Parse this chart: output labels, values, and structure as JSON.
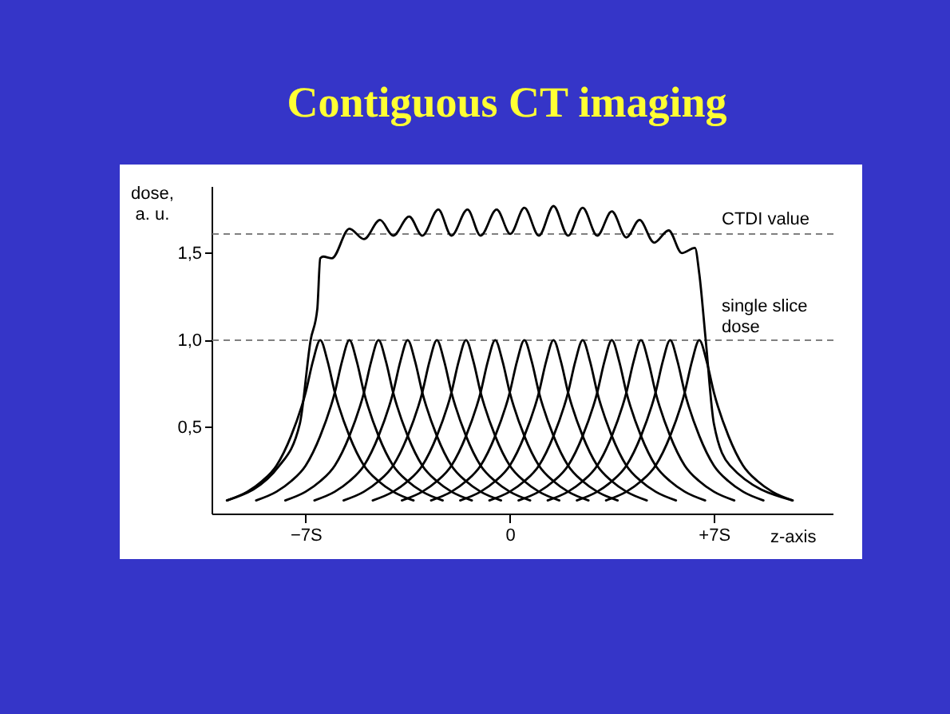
{
  "chart_data": {
    "type": "line",
    "title": "Contiguous CT imaging",
    "xlabel": "z-axis",
    "ylabel": "dose, a. u.",
    "xlim": [
      -10.2,
      11.1
    ],
    "ylim": [
      0,
      1.88
    ],
    "xticks": [
      {
        "value": -7,
        "label": "−7S"
      },
      0,
      {
        "value": 7,
        "label": "+7S"
      }
    ],
    "yticks": [
      {
        "value": 0.5,
        "label": "0,5"
      },
      {
        "value": 1,
        "label": "1,0"
      },
      {
        "value": 1.5,
        "label": "1,5"
      }
    ],
    "grid": false,
    "legend": false,
    "marker": "none",
    "line_style": "solid",
    "ref_lines": [
      {
        "axis": "y",
        "value": 1.61,
        "label": "CTDI value",
        "color": "#808080",
        "line_style": "dashed"
      },
      {
        "axis": "y",
        "value": 1.0,
        "label": "single slice dose",
        "color": "#808080",
        "line_style": "dashed"
      }
    ],
    "series": [
      {
        "color": "#000000",
        "x": [
          -9.7,
          -7.9,
          -7.2,
          -6.83,
          -6.6,
          -6.5,
          -6.4,
          -6.1,
          -5.5,
          -5.0,
          -4.45,
          -4.0,
          -3.45,
          -3.0,
          -2.45,
          -2.0,
          -1.45,
          -1.0,
          -0.45,
          0.02,
          0.5,
          1.0,
          1.5,
          2.0,
          2.5,
          3.0,
          3.5,
          4.0,
          4.45,
          4.95,
          5.45,
          5.9,
          6.35,
          6.5,
          6.72,
          7.0,
          7.55,
          9.7
        ],
        "values": [
          0.08,
          0.28,
          0.52,
          1.0,
          1.18,
          1.47,
          1.48,
          1.47,
          1.64,
          1.58,
          1.69,
          1.6,
          1.71,
          1.6,
          1.75,
          1.6,
          1.75,
          1.6,
          1.75,
          1.61,
          1.76,
          1.6,
          1.77,
          1.6,
          1.76,
          1.6,
          1.74,
          1.59,
          1.69,
          1.56,
          1.63,
          1.5,
          1.53,
          1.38,
          1.0,
          0.52,
          0.28,
          0.08
        ]
      },
      {
        "color": "#000000",
        "x": [
          -9.7,
          -9,
          -8.5,
          -8,
          -7.5,
          -7,
          -6.75,
          -6.5,
          -6.25,
          -6,
          -5.5,
          -5,
          -4.5,
          -4,
          -3.3
        ],
        "values": [
          0.08,
          0.13,
          0.19,
          0.28,
          0.45,
          0.7,
          0.88,
          1,
          0.88,
          0.7,
          0.45,
          0.28,
          0.19,
          0.13,
          0.08
        ]
      },
      {
        "color": "#000000",
        "x": [
          -8.7,
          -8,
          -7.5,
          -7,
          -6.5,
          -6,
          -5.75,
          -5.5,
          -5.25,
          -5,
          -4.5,
          -4,
          -3.5,
          -3,
          -2.3
        ],
        "values": [
          0.08,
          0.13,
          0.19,
          0.28,
          0.45,
          0.7,
          0.88,
          1,
          0.88,
          0.7,
          0.45,
          0.28,
          0.19,
          0.13,
          0.08
        ]
      },
      {
        "color": "#000000",
        "x": [
          -7.7,
          -7,
          -6.5,
          -6,
          -5.5,
          -5,
          -4.75,
          -4.5,
          -4.25,
          -4,
          -3.5,
          -3,
          -2.5,
          -2,
          -1.3
        ],
        "values": [
          0.08,
          0.13,
          0.19,
          0.28,
          0.45,
          0.7,
          0.88,
          1,
          0.88,
          0.7,
          0.45,
          0.28,
          0.19,
          0.13,
          0.08
        ]
      },
      {
        "color": "#000000",
        "x": [
          -6.7,
          -6,
          -5.5,
          -5,
          -4.5,
          -4,
          -3.75,
          -3.5,
          -3.25,
          -3,
          -2.5,
          -2,
          -1.5,
          -1,
          -0.3
        ],
        "values": [
          0.08,
          0.13,
          0.19,
          0.28,
          0.45,
          0.7,
          0.88,
          1,
          0.88,
          0.7,
          0.45,
          0.28,
          0.19,
          0.13,
          0.08
        ]
      },
      {
        "color": "#000000",
        "x": [
          -5.7,
          -5,
          -4.5,
          -4,
          -3.5,
          -3,
          -2.75,
          -2.5,
          -2.25,
          -2,
          -1.5,
          -1,
          -0.5,
          0,
          0.7
        ],
        "values": [
          0.08,
          0.13,
          0.19,
          0.28,
          0.45,
          0.7,
          0.88,
          1,
          0.88,
          0.7,
          0.45,
          0.28,
          0.19,
          0.13,
          0.08
        ]
      },
      {
        "color": "#000000",
        "x": [
          -4.7,
          -4,
          -3.5,
          -3,
          -2.5,
          -2,
          -1.75,
          -1.5,
          -1.25,
          -1,
          -0.5,
          0,
          0.5,
          1,
          1.7
        ],
        "values": [
          0.08,
          0.13,
          0.19,
          0.28,
          0.45,
          0.7,
          0.88,
          1,
          0.88,
          0.7,
          0.45,
          0.28,
          0.19,
          0.13,
          0.08
        ]
      },
      {
        "color": "#000000",
        "x": [
          -3.7,
          -3,
          -2.5,
          -2,
          -1.5,
          -1,
          -0.75,
          -0.5,
          -0.25,
          0,
          0.5,
          1,
          1.5,
          2,
          2.7
        ],
        "values": [
          0.08,
          0.13,
          0.19,
          0.28,
          0.45,
          0.7,
          0.88,
          1,
          0.88,
          0.7,
          0.45,
          0.28,
          0.19,
          0.13,
          0.08
        ]
      },
      {
        "color": "#000000",
        "x": [
          -2.7,
          -2,
          -1.5,
          -1,
          -0.5,
          0,
          0.25,
          0.5,
          0.75,
          1,
          1.5,
          2,
          2.5,
          3,
          3.7
        ],
        "values": [
          0.08,
          0.13,
          0.19,
          0.28,
          0.45,
          0.7,
          0.88,
          1,
          0.88,
          0.7,
          0.45,
          0.28,
          0.19,
          0.13,
          0.08
        ]
      },
      {
        "color": "#000000",
        "x": [
          -1.7,
          -1,
          -0.5,
          0,
          0.5,
          1,
          1.25,
          1.5,
          1.75,
          2,
          2.5,
          3,
          3.5,
          4,
          4.7
        ],
        "values": [
          0.08,
          0.13,
          0.19,
          0.28,
          0.45,
          0.7,
          0.88,
          1,
          0.88,
          0.7,
          0.45,
          0.28,
          0.19,
          0.13,
          0.08
        ]
      },
      {
        "color": "#000000",
        "x": [
          -0.7,
          0,
          0.5,
          1,
          1.5,
          2,
          2.25,
          2.5,
          2.75,
          3,
          3.5,
          4,
          4.5,
          5,
          5.7
        ],
        "values": [
          0.08,
          0.13,
          0.19,
          0.28,
          0.45,
          0.7,
          0.88,
          1,
          0.88,
          0.7,
          0.45,
          0.28,
          0.19,
          0.13,
          0.08
        ]
      },
      {
        "color": "#000000",
        "x": [
          0.3,
          1,
          1.5,
          2,
          2.5,
          3,
          3.25,
          3.5,
          3.75,
          4,
          4.5,
          5,
          5.5,
          6,
          6.7
        ],
        "values": [
          0.08,
          0.13,
          0.19,
          0.28,
          0.45,
          0.7,
          0.88,
          1,
          0.88,
          0.7,
          0.45,
          0.28,
          0.19,
          0.13,
          0.08
        ]
      },
      {
        "color": "#000000",
        "x": [
          1.3,
          2,
          2.5,
          3,
          3.5,
          4,
          4.25,
          4.5,
          4.75,
          5,
          5.5,
          6,
          6.5,
          7,
          7.7
        ],
        "values": [
          0.08,
          0.13,
          0.19,
          0.28,
          0.45,
          0.7,
          0.88,
          1,
          0.88,
          0.7,
          0.45,
          0.28,
          0.19,
          0.13,
          0.08
        ]
      },
      {
        "color": "#000000",
        "x": [
          2.3,
          3,
          3.5,
          4,
          4.5,
          5,
          5.25,
          5.5,
          5.75,
          6,
          6.5,
          7,
          7.5,
          8,
          8.7
        ],
        "values": [
          0.08,
          0.13,
          0.19,
          0.28,
          0.45,
          0.7,
          0.88,
          1,
          0.88,
          0.7,
          0.45,
          0.28,
          0.19,
          0.13,
          0.08
        ]
      },
      {
        "color": "#000000",
        "x": [
          3.3,
          4,
          4.5,
          5,
          5.5,
          6,
          6.25,
          6.5,
          6.75,
          7,
          7.5,
          8,
          8.5,
          9,
          9.7
        ],
        "values": [
          0.08,
          0.13,
          0.19,
          0.28,
          0.45,
          0.7,
          0.88,
          1,
          0.88,
          0.7,
          0.45,
          0.28,
          0.19,
          0.13,
          0.08
        ]
      }
    ]
  }
}
